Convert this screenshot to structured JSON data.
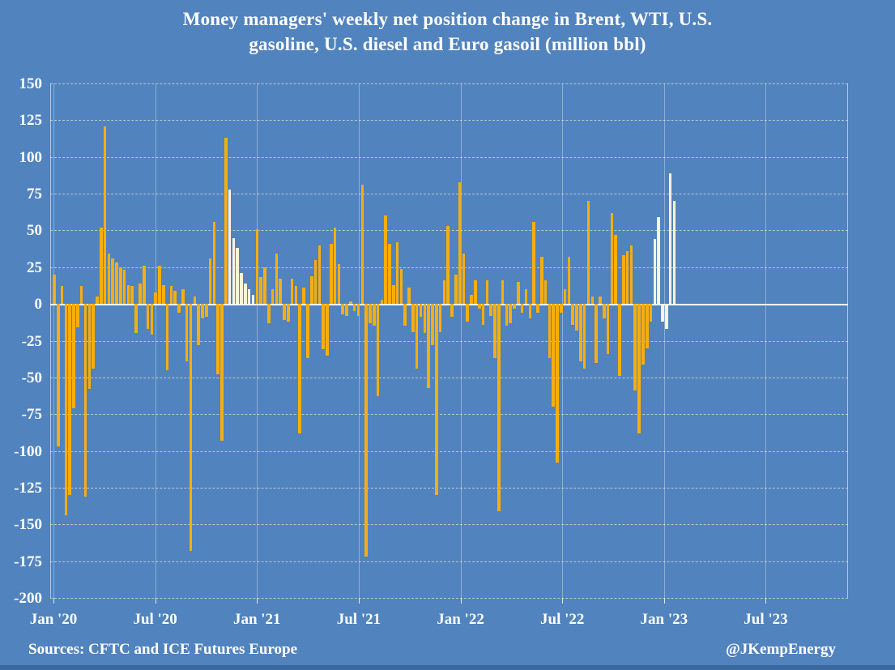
{
  "page": {
    "background": "#5183BE",
    "text_color": "#FFFFFF",
    "bottom_strip_color": "#39679E"
  },
  "title": {
    "line1": "Money managers' weekly net position change in Brent, WTI, U.S.",
    "line2": "gasoline, U.S. diesel and Euro gasoil (million bbl)"
  },
  "footer": {
    "source": "Sources: CFTC and ICE Futures Europe",
    "handle": "@JKempEnergy"
  },
  "chart_data": {
    "type": "bar",
    "title": "Money managers' weekly net position change in Brent, WTI, U.S. gasoline, U.S. diesel and Euro gasoil (million bbl)",
    "xlabel": "",
    "ylabel": "",
    "ylim": [
      -200,
      150
    ],
    "ytick_step": 25,
    "yticks": [
      150,
      125,
      100,
      75,
      50,
      25,
      0,
      -25,
      -50,
      -75,
      -100,
      -125,
      -150,
      -175,
      -200
    ],
    "xtick_labels": [
      "Jan '20",
      "Jul '20",
      "Jan '21",
      "Jul '21",
      "Jan '22",
      "Jul '22",
      "Jan '23",
      "Jul '23"
    ],
    "grid": true,
    "legend_position": "none",
    "bar_color": "#F6AE0F",
    "recent_bar_color": "#FCF3DC",
    "frequency": "weekly",
    "values": [
      20,
      -97,
      12,
      -144,
      -130,
      -71,
      -16,
      12,
      -131,
      -58,
      -44,
      5,
      52,
      121,
      34,
      31,
      28,
      25,
      23,
      13,
      12,
      -20,
      14,
      26,
      -17,
      -21,
      8,
      26,
      13,
      -45,
      12,
      9,
      -6,
      10,
      -39,
      -168,
      5,
      -28,
      -10,
      -9,
      31,
      56,
      -48,
      -93,
      113,
      78,
      45,
      38,
      21,
      14,
      10,
      6,
      51,
      18,
      25,
      -13,
      10,
      34,
      17,
      -11,
      -12,
      17,
      12,
      -88,
      11,
      -37,
      19,
      30,
      40,
      -31,
      -35,
      41,
      52,
      27,
      -7,
      -8,
      2,
      -5,
      -8,
      81,
      -172,
      -13,
      -15,
      -63,
      3,
      60,
      41,
      13,
      42,
      24,
      -15,
      11,
      -19,
      -44,
      -9,
      -20,
      -57,
      -28,
      -130,
      -19,
      16,
      53,
      -9,
      20,
      83,
      34,
      -12,
      6,
      16,
      -3,
      -14,
      16,
      -8,
      -37,
      -141,
      16,
      -15,
      -13,
      -3,
      15,
      -6,
      10,
      -10,
      56,
      -6,
      32,
      16,
      -37,
      -70,
      -108,
      -6,
      10,
      32,
      -14,
      -18,
      -39,
      -44,
      70,
      5,
      -40,
      5,
      -10,
      -34,
      62,
      47,
      -49,
      33,
      36,
      40,
      -59,
      -88,
      -41,
      -30,
      -12,
      44,
      59,
      -12,
      -17,
      89,
      70
    ],
    "white_bar_indices": [
      45,
      46,
      47,
      48,
      49,
      50,
      51,
      154,
      155,
      156,
      157,
      158,
      159
    ]
  }
}
